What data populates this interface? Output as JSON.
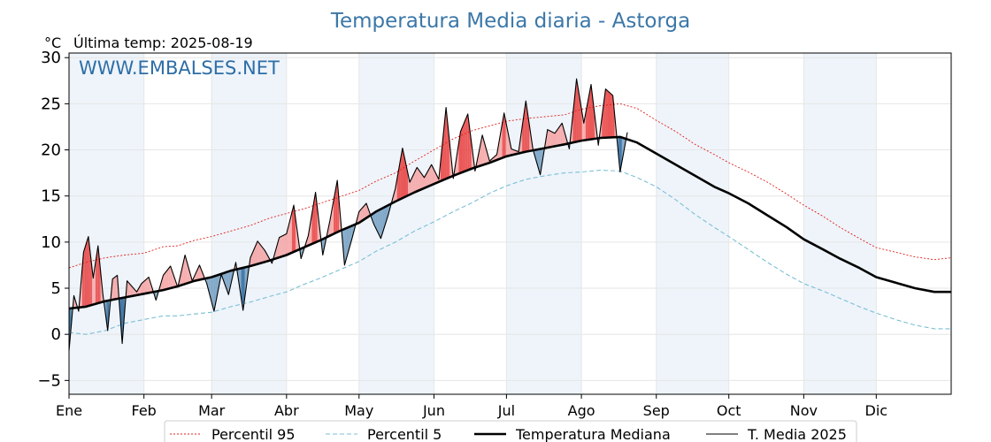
{
  "title": "Temperatura Media diaria - Astorga",
  "unit_label": "°C",
  "last_temp": "Última temp: 2025-08-19",
  "watermark": "WWW.EMBALSES.NET",
  "colors": {
    "p95": "#e0201b",
    "p5": "#7bbfd6",
    "median": "#000000",
    "t2025": "#000000",
    "above_fill": "#f4a0a0",
    "above_fill_strong": "#e8393a",
    "below_fill": "#6e9bbf",
    "below_fill_strong": "#1f5f96",
    "band": "#eef4fa",
    "title": "#3b77a8"
  },
  "chart_data": {
    "type": "line",
    "title": "Temperatura Media diaria - Astorga",
    "ylabel": "°C",
    "ylim": [
      -6.5,
      30.5
    ],
    "yticks": [
      -5,
      0,
      5,
      10,
      15,
      20,
      25,
      30
    ],
    "xlim": [
      1,
      366
    ],
    "month_ticks": [
      {
        "label": "Ene",
        "day": 1
      },
      {
        "label": "Feb",
        "day": 32
      },
      {
        "label": "Mar",
        "day": 60
      },
      {
        "label": "Abr",
        "day": 91
      },
      {
        "label": "May",
        "day": 121
      },
      {
        "label": "Jun",
        "day": 152
      },
      {
        "label": "Jul",
        "day": 182
      },
      {
        "label": "Ago",
        "day": 213
      },
      {
        "label": "Sep",
        "day": 244
      },
      {
        "label": "Oct",
        "day": 274
      },
      {
        "label": "Nov",
        "day": 305
      },
      {
        "label": "Dic",
        "day": 335
      }
    ],
    "grid": true,
    "legend_position": "bottom",
    "series": [
      {
        "name": "Percentil 95",
        "style": "dotted",
        "x": [
          1,
          8,
          16,
          24,
          32,
          40,
          46,
          53,
          60,
          68,
          76,
          84,
          91,
          98,
          105,
          113,
          121,
          128,
          136,
          144,
          152,
          160,
          168,
          175,
          182,
          190,
          198,
          206,
          213,
          221,
          229,
          236,
          244,
          252,
          260,
          268,
          274,
          282,
          290,
          298,
          305,
          313,
          320,
          328,
          335,
          343,
          351,
          359,
          366
        ],
        "y": [
          7.2,
          7.8,
          8.3,
          8.6,
          8.8,
          9.5,
          9.6,
          10.2,
          10.6,
          11.2,
          11.8,
          12.6,
          13.1,
          13.6,
          14.2,
          14.9,
          15.6,
          16.6,
          17.5,
          18.8,
          20.0,
          21.2,
          22.1,
          22.6,
          23.1,
          23.4,
          23.6,
          23.8,
          24.4,
          24.8,
          25.0,
          24.5,
          23.2,
          22.0,
          20.6,
          19.5,
          18.6,
          17.6,
          16.5,
          15.2,
          14.0,
          12.8,
          11.6,
          10.4,
          9.4,
          8.9,
          8.4,
          8.1,
          8.3
        ]
      },
      {
        "name": "Percentil 5",
        "style": "dashed",
        "x": [
          1,
          8,
          16,
          24,
          32,
          40,
          46,
          53,
          60,
          68,
          76,
          84,
          91,
          98,
          105,
          113,
          121,
          128,
          136,
          144,
          152,
          160,
          168,
          175,
          182,
          190,
          198,
          206,
          213,
          221,
          229,
          236,
          244,
          252,
          260,
          268,
          274,
          282,
          290,
          298,
          305,
          313,
          320,
          328,
          335,
          343,
          351,
          359,
          366
        ],
        "y": [
          0.2,
          0.0,
          0.4,
          1.2,
          1.6,
          2.0,
          2.0,
          2.2,
          2.4,
          3.0,
          3.5,
          4.1,
          4.6,
          5.4,
          6.1,
          7.0,
          7.9,
          9.0,
          10.0,
          11.2,
          12.2,
          13.3,
          14.3,
          15.3,
          16.1,
          16.8,
          17.2,
          17.5,
          17.6,
          17.8,
          17.7,
          17.0,
          16.0,
          14.6,
          13.0,
          11.6,
          10.6,
          9.2,
          7.8,
          6.5,
          5.5,
          4.7,
          3.9,
          3.0,
          2.3,
          1.6,
          1.0,
          0.6,
          0.6
        ]
      },
      {
        "name": "Temperatura Mediana",
        "style": "solid-thick",
        "x": [
          1,
          8,
          16,
          24,
          32,
          40,
          46,
          53,
          60,
          68,
          76,
          84,
          91,
          98,
          105,
          113,
          121,
          128,
          136,
          144,
          152,
          160,
          168,
          175,
          182,
          190,
          198,
          206,
          213,
          221,
          229,
          236,
          244,
          252,
          260,
          268,
          274,
          282,
          290,
          298,
          305,
          313,
          320,
          328,
          335,
          343,
          351,
          359,
          366
        ],
        "y": [
          2.8,
          3.0,
          3.6,
          4.0,
          4.4,
          4.8,
          5.2,
          5.8,
          6.2,
          6.9,
          7.4,
          8.0,
          8.6,
          9.4,
          10.2,
          11.2,
          12.1,
          13.3,
          14.4,
          15.4,
          16.3,
          17.2,
          18.0,
          18.6,
          19.3,
          19.8,
          20.2,
          20.6,
          21.0,
          21.3,
          21.4,
          20.8,
          19.6,
          18.4,
          17.2,
          16.0,
          15.3,
          14.2,
          12.9,
          11.6,
          10.3,
          9.2,
          8.2,
          7.2,
          6.2,
          5.6,
          5.0,
          4.6,
          4.6
        ]
      },
      {
        "name": "T. Media 2025",
        "style": "solid-thin",
        "x": [
          1,
          3,
          5,
          7,
          9,
          11,
          13,
          15,
          17,
          19,
          21,
          23,
          25,
          27,
          29,
          31,
          34,
          37,
          40,
          43,
          46,
          49,
          52,
          55,
          58,
          61,
          64,
          67,
          70,
          73,
          76,
          79,
          82,
          85,
          88,
          91,
          94,
          97,
          100,
          103,
          106,
          109,
          112,
          115,
          118,
          121,
          124,
          127,
          130,
          133,
          136,
          139,
          142,
          145,
          148,
          151,
          154,
          157,
          160,
          163,
          166,
          169,
          172,
          175,
          178,
          181,
          184,
          187,
          190,
          193,
          196,
          199,
          202,
          205,
          208,
          211,
          214,
          217,
          220,
          223,
          226,
          229,
          232
        ],
        "y": [
          -1.8,
          4.2,
          2.5,
          8.9,
          10.6,
          6.1,
          9.6,
          4.4,
          0.4,
          6.0,
          6.4,
          -1.0,
          5.8,
          5.2,
          4.6,
          5.5,
          6.2,
          3.7,
          6.4,
          7.4,
          5.1,
          8.6,
          5.8,
          7.5,
          5.5,
          2.5,
          6.5,
          4.3,
          7.8,
          2.6,
          8.3,
          10.1,
          9.1,
          7.7,
          10.5,
          10.9,
          14.0,
          8.2,
          10.7,
          15.4,
          8.6,
          12.4,
          16.7,
          7.5,
          10.3,
          13.3,
          14.2,
          12.0,
          10.4,
          12.9,
          15.8,
          20.2,
          16.5,
          18.1,
          17.0,
          18.4,
          16.8,
          24.6,
          16.9,
          22.0,
          23.9,
          17.7,
          21.6,
          18.8,
          19.5,
          24.0,
          20.1,
          19.8,
          25.3,
          20.0,
          17.3,
          22.2,
          21.8,
          22.9,
          20.1,
          27.7,
          22.9,
          27.1,
          20.5,
          26.6,
          25.9,
          17.6,
          21.9
        ]
      }
    ],
    "fill_rules": [
      "T. Media 2025 above Temperatura Mediana: red fill",
      "T. Media 2025 below Temperatura Mediana: blue fill",
      "beyond Percentil 95 / Percentil 5: darker fill"
    ]
  },
  "legend": {
    "items": [
      {
        "label": "Percentil 95",
        "style": "dotted",
        "color": "#e0201b"
      },
      {
        "label": "Percentil 5",
        "style": "dashed",
        "color": "#7bbfd6"
      },
      {
        "label": "Temperatura Mediana",
        "style": "solid-thick",
        "color": "#000000"
      },
      {
        "label": "T. Media 2025",
        "style": "solid-thin",
        "color": "#000000"
      }
    ]
  }
}
